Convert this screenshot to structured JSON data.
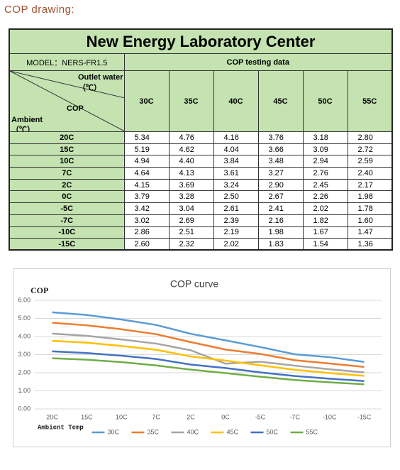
{
  "heading": "COP drawing:",
  "table": {
    "title": "New Energy Laboratory Center",
    "model": "MODEL：NERS-FR1.5",
    "group_header": "COP testing data",
    "corner": {
      "outlet": "Outlet water（℃）",
      "cop": "COP",
      "ambient": "Ambient（℃）"
    },
    "columns": [
      "30C",
      "35C",
      "40C",
      "45C",
      "50C",
      "55C"
    ],
    "rows": [
      {
        "label": "20C",
        "cells": [
          "5.34",
          "4.76",
          "4.16",
          "3.76",
          "3.18",
          "2.80"
        ]
      },
      {
        "label": "15C",
        "cells": [
          "5.19",
          "4.62",
          "4.04",
          "3.66",
          "3.09",
          "2.72"
        ]
      },
      {
        "label": "10C",
        "cells": [
          "4.94",
          "4.40",
          "3.84",
          "3.48",
          "2.94",
          "2.59"
        ]
      },
      {
        "label": "7C",
        "cells": [
          "4.64",
          "4.13",
          "3.61",
          "3.27",
          "2.76",
          "2.40"
        ]
      },
      {
        "label": "2C",
        "cells": [
          "4.15",
          "3.69",
          "3.24",
          "2.90",
          "2.45",
          "2.17"
        ]
      },
      {
        "label": "0C",
        "cells": [
          "3.79",
          "3.28",
          "2.50",
          "2.67",
          "2.26",
          "1.98"
        ]
      },
      {
        "label": "-5C",
        "cells": [
          "3.42",
          "3.04",
          "2.61",
          "2.41",
          "2.02",
          "1.78"
        ]
      },
      {
        "label": "-7C",
        "cells": [
          "3.02",
          "2.69",
          "2.39",
          "2.16",
          "1.82",
          "1.60"
        ]
      },
      {
        "label": "-10C",
        "cells": [
          "2.86",
          "2.51",
          "2.19",
          "1.98",
          "1.67",
          "1.47"
        ]
      },
      {
        "label": "-15C",
        "cells": [
          "2.60",
          "2.32",
          "2.02",
          "1.83",
          "1.54",
          "1.36"
        ]
      }
    ]
  },
  "chart_data": {
    "type": "line",
    "title": "COP curve",
    "y_label": "COP",
    "x_label": "Ambient Temp",
    "categories": [
      "20C",
      "15C",
      "10C",
      "7C",
      "2C",
      "0C",
      "-5C",
      "-7C",
      "-10C",
      "-15C"
    ],
    "ylim": [
      0,
      6
    ],
    "yticks": [
      {
        "value": 0,
        "label": "0.00"
      },
      {
        "value": 1,
        "label": "1.00"
      },
      {
        "value": 2,
        "label": "2.00"
      },
      {
        "value": 3,
        "label": "3.00"
      },
      {
        "value": 4,
        "label": "4.00"
      },
      {
        "value": 5,
        "label": "5.00"
      },
      {
        "value": 6,
        "label": "6.00"
      }
    ],
    "grid": true,
    "legend": "bottom",
    "series": [
      {
        "name": "30C",
        "color": "#5b9bd5",
        "values": [
          5.34,
          5.19,
          4.94,
          4.64,
          4.15,
          3.79,
          3.42,
          3.02,
          2.86,
          2.6
        ]
      },
      {
        "name": "35C",
        "color": "#ed7d31",
        "values": [
          4.76,
          4.62,
          4.4,
          4.13,
          3.69,
          3.28,
          3.04,
          2.69,
          2.51,
          2.32
        ]
      },
      {
        "name": "40C",
        "color": "#a5a5a5",
        "values": [
          4.16,
          4.04,
          3.84,
          3.61,
          3.24,
          2.5,
          2.61,
          2.39,
          2.19,
          2.02
        ]
      },
      {
        "name": "45C",
        "color": "#ffc000",
        "values": [
          3.76,
          3.66,
          3.48,
          3.27,
          2.9,
          2.67,
          2.41,
          2.16,
          1.98,
          1.83
        ]
      },
      {
        "name": "50C",
        "color": "#4472c4",
        "values": [
          3.18,
          3.09,
          2.94,
          2.76,
          2.45,
          2.26,
          2.02,
          1.82,
          1.67,
          1.54
        ]
      },
      {
        "name": "55C",
        "color": "#70ad47",
        "values": [
          2.8,
          2.72,
          2.59,
          2.4,
          2.17,
          1.98,
          1.78,
          1.6,
          1.47,
          1.36
        ]
      }
    ]
  }
}
